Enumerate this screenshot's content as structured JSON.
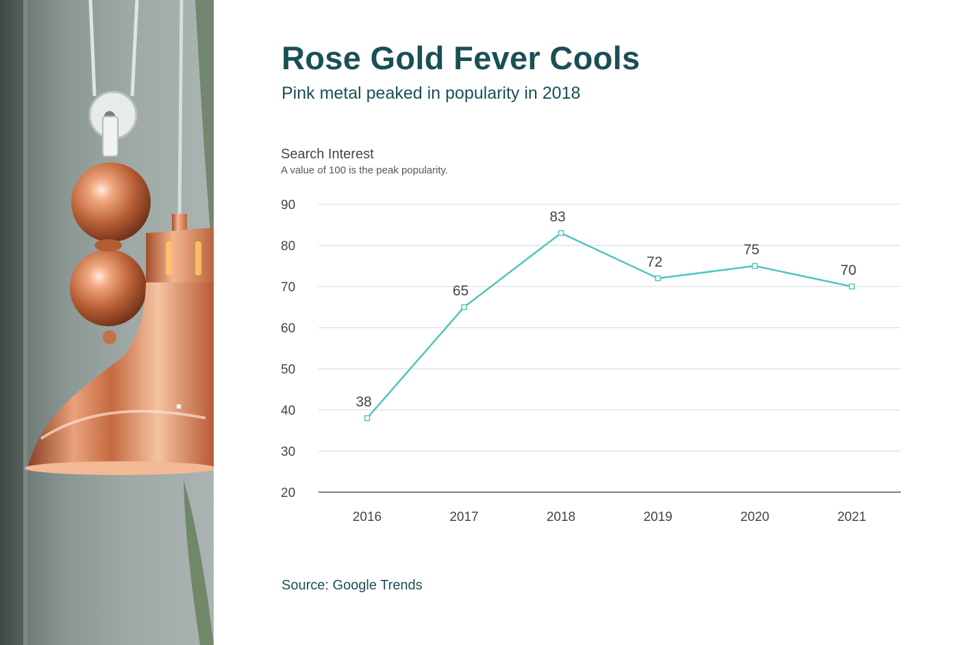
{
  "title": "Rose Gold Fever Cools",
  "subtitle": "Pink metal peaked in popularity in 2018",
  "source": "Source: Google Trends",
  "colors": {
    "title": "#1b4f56",
    "line": "#4ec6bc",
    "grid": "#d6d6d6",
    "axis": "#555555",
    "text": "#444444"
  },
  "chart_data": {
    "type": "line",
    "ylabel": "Search Interest",
    "ylabel_note": "A value of 100 is the peak popularity.",
    "x": [
      "2016",
      "2017",
      "2018",
      "2019",
      "2020",
      "2021"
    ],
    "series": [
      {
        "values": [
          38,
          65,
          83,
          72,
          75,
          70
        ]
      }
    ],
    "yticks": [
      20,
      30,
      40,
      50,
      60,
      70,
      80,
      90
    ],
    "ylim": [
      20,
      90
    ],
    "grid": true,
    "data_labels": true,
    "markers": "hollow-square"
  }
}
